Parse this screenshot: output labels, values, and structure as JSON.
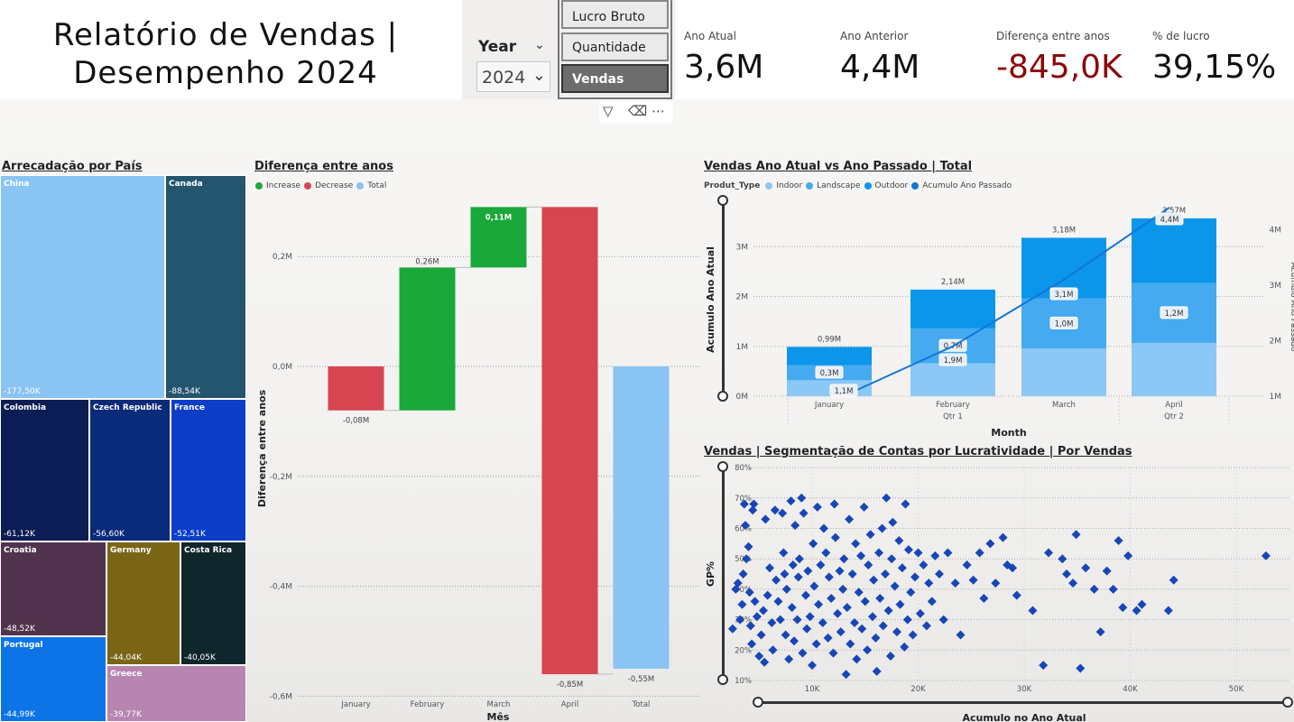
{
  "header": {
    "title_line1": "Relatório de Vendas |",
    "title_line2": "Desempenho 2024"
  },
  "year_slicer": {
    "label": "Year",
    "selected": "2024"
  },
  "measure_slicer": {
    "options": [
      "Lucro Bruto",
      "Quantidade",
      "Vendas"
    ],
    "selected": "Vendas"
  },
  "kpis": [
    {
      "label": "Ano Atual",
      "value": "3,6M",
      "color": "#111111"
    },
    {
      "label": "Ano Anterior",
      "value": "4,4M",
      "color": "#111111"
    },
    {
      "label": "Diferença entre anos",
      "value": "-845,0K",
      "color": "#8b0a0a"
    },
    {
      "label": "% de lucro",
      "value": "39,15%",
      "color": "#111111"
    }
  ],
  "treemap": {
    "title": "Arrecadação por País",
    "cells": [
      {
        "name": "China",
        "value": "-177,50K",
        "color": "#89c4f4"
      },
      {
        "name": "Canada",
        "value": "-88,54K",
        "color": "#24556e"
      },
      {
        "name": "Colombia",
        "value": "-61,12K",
        "color": "#0c1d55"
      },
      {
        "name": "Czech Republic",
        "value": "-56,60K",
        "color": "#0a2a7a"
      },
      {
        "name": "France",
        "value": "-52,51K",
        "color": "#0c3ec9"
      },
      {
        "name": "Croatia",
        "value": "-48,52K",
        "color": "#52334f"
      },
      {
        "name": "Germany",
        "value": "-44,04K",
        "color": "#7a6516"
      },
      {
        "name": "Costa Rica",
        "value": "-40,05K",
        "color": "#0f272c"
      },
      {
        "name": "Portugal",
        "value": "-44,99K",
        "color": "#0d74e8"
      },
      {
        "name": "Greece",
        "value": "-39,77K",
        "color": "#b785b0"
      }
    ]
  },
  "waterfall": {
    "title": "Diferença entre anos",
    "legend": [
      {
        "label": "Increase",
        "color": "#1aa83a"
      },
      {
        "label": "Decrease",
        "color": "#d64550"
      },
      {
        "label": "Total",
        "color": "#89c4f4"
      }
    ],
    "xlabel": "Mês",
    "ylabel": "Diferença entre anos",
    "yticks": [
      "0,2M",
      "0,0M",
      "-0,2M",
      "-0,4M",
      "-0,6M"
    ]
  },
  "combo": {
    "title": "Vendas Ano Atual vs Ano Passado | Total",
    "legend_title": "Produt_Type",
    "legend": [
      {
        "label": "Indoor",
        "color": "#8cc8f6"
      },
      {
        "label": "Landscape",
        "color": "#45aaf0"
      },
      {
        "label": "Outdoor",
        "color": "#0b96ea"
      },
      {
        "label": "Acumulo Ano Passado",
        "color": "#1176d6"
      }
    ],
    "xlabel": "Month",
    "ylabel_left": "Acumulo Ano Atual",
    "ylabel_right": "Acumulo Ano Passado",
    "yticks_left": [
      "3M",
      "2M",
      "1M",
      "0M"
    ],
    "yticks_right": [
      "4M",
      "3M",
      "2M",
      "1M"
    ],
    "qtr_labels": [
      "Qtr 1",
      "Qtr 2"
    ]
  },
  "scatter": {
    "title": "Vendas | Segmentação de Contas por Lucratividade | Por Vendas",
    "xlabel": "Acumulo no Ano Atual",
    "ylabel": "GP%",
    "yticks": [
      "80%",
      "70%",
      "60%",
      "50%",
      "40%",
      "30%",
      "20%",
      "10%"
    ],
    "xticks": [
      "10K",
      "20K",
      "30K",
      "40K",
      "50K"
    ]
  },
  "chart_data": [
    {
      "type": "bar",
      "subtype": "waterfall",
      "categories": [
        "January",
        "February",
        "March",
        "April",
        "Total"
      ],
      "values": [
        -0.08,
        0.26,
        0.11,
        -0.85,
        -0.55
      ],
      "data_labels": [
        "-0,08M",
        "0,26M",
        "0,11M",
        "-0,85M",
        "-0,55M"
      ],
      "ylim": [
        -0.6,
        0.3
      ],
      "xlabel": "Mês",
      "ylabel": "Diferença entre anos"
    },
    {
      "type": "bar",
      "subtype": "stacked-bar-with-line",
      "categories": [
        "January",
        "February",
        "March",
        "April"
      ],
      "series": [
        {
          "name": "Indoor",
          "values": [
            0.32,
            0.66,
            0.96,
            1.07
          ]
        },
        {
          "name": "Landscape",
          "values": [
            0.3,
            0.7,
            1.0,
            1.2
          ]
        },
        {
          "name": "Outdoor",
          "values": [
            0.37,
            0.78,
            1.22,
            1.3
          ]
        }
      ],
      "totals": [
        0.99,
        2.14,
        3.18,
        3.57
      ],
      "total_labels": [
        "0,99M",
        "2,14M",
        "3,18M",
        "3,57M"
      ],
      "segment_labels": [
        {
          "category": "January",
          "label": "0,3M"
        },
        {
          "category": "February",
          "label": "0,7M"
        },
        {
          "category": "March",
          "label": "1,0M"
        },
        {
          "category": "April",
          "label": "1,2M"
        }
      ],
      "line": {
        "name": "Acumulo Ano Passado",
        "values": [
          1.1,
          1.9,
          3.1,
          4.4
        ],
        "labels": [
          "1,1M",
          "1,9M",
          "3,1M",
          "4,4M"
        ]
      },
      "ylim_left": [
        0,
        3.5
      ],
      "ylim_right": [
        1,
        4.5
      ],
      "xlabel": "Month",
      "ylabel": "Acumulo Ano Atual"
    },
    {
      "type": "scatter",
      "xlabel": "Acumulo no Ano Atual",
      "ylabel": "GP%",
      "xlim": [
        1000,
        54000
      ],
      "ylim": [
        10,
        80
      ],
      "points": [
        [
          2.5,
          27
        ],
        [
          2.8,
          40
        ],
        [
          3.0,
          42
        ],
        [
          3.2,
          30
        ],
        [
          3.4,
          35
        ],
        [
          3.5,
          45
        ],
        [
          3.6,
          68
        ],
        [
          3.7,
          61
        ],
        [
          3.8,
          50
        ],
        [
          4.0,
          54
        ],
        [
          4.1,
          39
        ],
        [
          4.2,
          28
        ],
        [
          4.3,
          22
        ],
        [
          4.4,
          66
        ],
        [
          4.5,
          68
        ],
        [
          4.6,
          36
        ],
        [
          4.8,
          31
        ],
        [
          5.0,
          18
        ],
        [
          5.2,
          25
        ],
        [
          5.4,
          33
        ],
        [
          5.5,
          16
        ],
        [
          5.6,
          63
        ],
        [
          5.8,
          38
        ],
        [
          6.0,
          47
        ],
        [
          6.2,
          29
        ],
        [
          6.3,
          20
        ],
        [
          6.5,
          66
        ],
        [
          6.6,
          43
        ],
        [
          6.8,
          36
        ],
        [
          7.0,
          30
        ],
        [
          7.2,
          65
        ],
        [
          7.3,
          52
        ],
        [
          7.4,
          45
        ],
        [
          7.5,
          25
        ],
        [
          7.6,
          40
        ],
        [
          7.8,
          17
        ],
        [
          8.0,
          69
        ],
        [
          8.1,
          34
        ],
        [
          8.2,
          48
        ],
        [
          8.3,
          23
        ],
        [
          8.4,
          61
        ],
        [
          8.6,
          30
        ],
        [
          8.7,
          44
        ],
        [
          8.8,
          50
        ],
        [
          9.0,
          70
        ],
        [
          9.1,
          19
        ],
        [
          9.2,
          65
        ],
        [
          9.4,
          38
        ],
        [
          9.5,
          27
        ],
        [
          9.6,
          46
        ],
        [
          9.8,
          31
        ],
        [
          10.0,
          15
        ],
        [
          10.1,
          55
        ],
        [
          10.2,
          41
        ],
        [
          10.4,
          22
        ],
        [
          10.5,
          67
        ],
        [
          10.6,
          35
        ],
        [
          10.8,
          48
        ],
        [
          11.0,
          29
        ],
        [
          11.1,
          60
        ],
        [
          11.3,
          52
        ],
        [
          11.5,
          24
        ],
        [
          11.6,
          44
        ],
        [
          11.8,
          37
        ],
        [
          12.0,
          19
        ],
        [
          12.1,
          68
        ],
        [
          12.2,
          57
        ],
        [
          12.4,
          32
        ],
        [
          12.6,
          46
        ],
        [
          12.7,
          26
        ],
        [
          12.9,
          40
        ],
        [
          13.0,
          50
        ],
        [
          13.2,
          12
        ],
        [
          13.3,
          34
        ],
        [
          13.5,
          63
        ],
        [
          13.6,
          22
        ],
        [
          13.8,
          45
        ],
        [
          14.0,
          29
        ],
        [
          14.1,
          55
        ],
        [
          14.2,
          17
        ],
        [
          14.4,
          39
        ],
        [
          14.6,
          51
        ],
        [
          14.7,
          27
        ],
        [
          14.9,
          67
        ],
        [
          15.0,
          36
        ],
        [
          15.2,
          20
        ],
        [
          15.3,
          48
        ],
        [
          15.5,
          58
        ],
        [
          15.7,
          31
        ],
        [
          15.8,
          43
        ],
        [
          16.0,
          24
        ],
        [
          16.1,
          13
        ],
        [
          16.3,
          52
        ],
        [
          16.4,
          37
        ],
        [
          16.6,
          60
        ],
        [
          16.7,
          28
        ],
        [
          16.9,
          45
        ],
        [
          17.0,
          70
        ],
        [
          17.2,
          33
        ],
        [
          17.4,
          18
        ],
        [
          17.5,
          50
        ],
        [
          17.6,
          62
        ],
        [
          17.8,
          41
        ],
        [
          18.0,
          26
        ],
        [
          18.2,
          56
        ],
        [
          18.3,
          35
        ],
        [
          18.5,
          47
        ],
        [
          18.7,
          21
        ],
        [
          18.8,
          68
        ],
        [
          19.0,
          30
        ],
        [
          19.1,
          53
        ],
        [
          19.3,
          39
        ],
        [
          19.5,
          25
        ],
        [
          19.7,
          44
        ],
        [
          20.0,
          52
        ],
        [
          20.2,
          32
        ],
        [
          20.5,
          48
        ],
        [
          20.8,
          28
        ],
        [
          21.0,
          42
        ],
        [
          21.3,
          36
        ],
        [
          21.6,
          51
        ],
        [
          22.0,
          45
        ],
        [
          22.4,
          30
        ],
        [
          22.8,
          52
        ],
        [
          23.5,
          42
        ],
        [
          24.0,
          25
        ],
        [
          24.6,
          48
        ],
        [
          25.2,
          43
        ],
        [
          25.8,
          52
        ],
        [
          26.2,
          37
        ],
        [
          26.8,
          55
        ],
        [
          27.3,
          42
        ],
        [
          28.0,
          57
        ],
        [
          28.4,
          48
        ],
        [
          28.9,
          47
        ],
        [
          29.3,
          38
        ],
        [
          30.8,
          33
        ],
        [
          31.8,
          15
        ],
        [
          32.3,
          52
        ],
        [
          33.6,
          50
        ],
        [
          34.0,
          45
        ],
        [
          34.6,
          42
        ],
        [
          34.9,
          58
        ],
        [
          35.3,
          14
        ],
        [
          35.8,
          47
        ],
        [
          36.6,
          40
        ],
        [
          37.2,
          26
        ],
        [
          37.8,
          46
        ],
        [
          38.4,
          40
        ],
        [
          38.9,
          56
        ],
        [
          39.3,
          34
        ],
        [
          39.8,
          51
        ],
        [
          40.6,
          33
        ],
        [
          41.1,
          35
        ],
        [
          43.6,
          33
        ],
        [
          44.1,
          43
        ],
        [
          52.8,
          51
        ]
      ]
    }
  ]
}
